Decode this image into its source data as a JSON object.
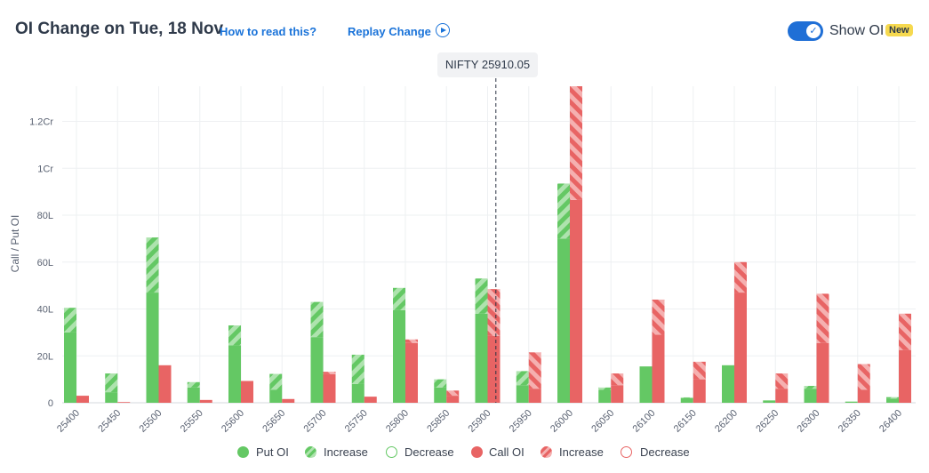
{
  "header": {
    "title": "OI Change on Tue, 18 Nov",
    "how_to_read": "How to read this?",
    "replay": "Replay Change",
    "toggle_label": "Show OI",
    "badge": "New",
    "spot_label": "NIFTY 25910.05"
  },
  "colors": {
    "put": "#64c864",
    "put_light": "#a8e1a8",
    "call": "#e86464",
    "call_light": "#f4a8a8",
    "accent": "#1a73d9"
  },
  "legend": {
    "put_oi": "Put OI",
    "put_increase": "Increase",
    "put_decrease": "Decrease",
    "call_oi": "Call OI",
    "call_increase": "Increase",
    "call_decrease": "Decrease"
  },
  "chart_data": {
    "type": "bar",
    "ylabel": "Call / Put OI",
    "ylim": [
      0,
      135
    ],
    "unit_note": "values in lakhs (L); 100L = 1Cr",
    "y_ticks": [
      {
        "value": 0,
        "label": "0"
      },
      {
        "value": 20,
        "label": "20L"
      },
      {
        "value": 40,
        "label": "40L"
      },
      {
        "value": 60,
        "label": "60L"
      },
      {
        "value": 80,
        "label": "80L"
      },
      {
        "value": 100,
        "label": "1Cr"
      },
      {
        "value": 120,
        "label": "1.2Cr"
      }
    ],
    "spot": 25910.05,
    "categories": [
      "25400",
      "25450",
      "25500",
      "25550",
      "25600",
      "25650",
      "25700",
      "25750",
      "25800",
      "25850",
      "25900",
      "25950",
      "26000",
      "26050",
      "26100",
      "26150",
      "26200",
      "26250",
      "26300",
      "26350",
      "26400"
    ],
    "series": [
      {
        "name": "Put OI",
        "values": [
          30,
          4.5,
          47,
          6.5,
          24.5,
          5.5,
          28,
          8,
          39.5,
          6.5,
          38,
          7.5,
          70,
          5.5,
          15.5,
          2,
          16,
          1,
          6,
          0.5,
          1.8
        ]
      },
      {
        "name": "Increase",
        "values": [
          10.5,
          8,
          23.5,
          2.3,
          8.5,
          6.8,
          15,
          12.5,
          9.5,
          3.5,
          15,
          6,
          23.5,
          1,
          0,
          0.3,
          0,
          0,
          1.2,
          0,
          0.6
        ]
      },
      {
        "name": "Call OI",
        "values": [
          3,
          0.3,
          16,
          1.2,
          9.3,
          1.6,
          12.2,
          2.6,
          25.5,
          3,
          28.5,
          6,
          86.5,
          7.5,
          29,
          10,
          47,
          6,
          25.5,
          5.5,
          22.5
        ]
      },
      {
        "name": "Increase",
        "values": [
          0,
          0,
          0,
          0,
          0,
          0,
          1,
          0,
          1.5,
          2.2,
          20,
          15.5,
          49,
          5,
          15,
          7.5,
          13,
          6.5,
          21,
          11,
          15.5
        ]
      }
    ]
  }
}
